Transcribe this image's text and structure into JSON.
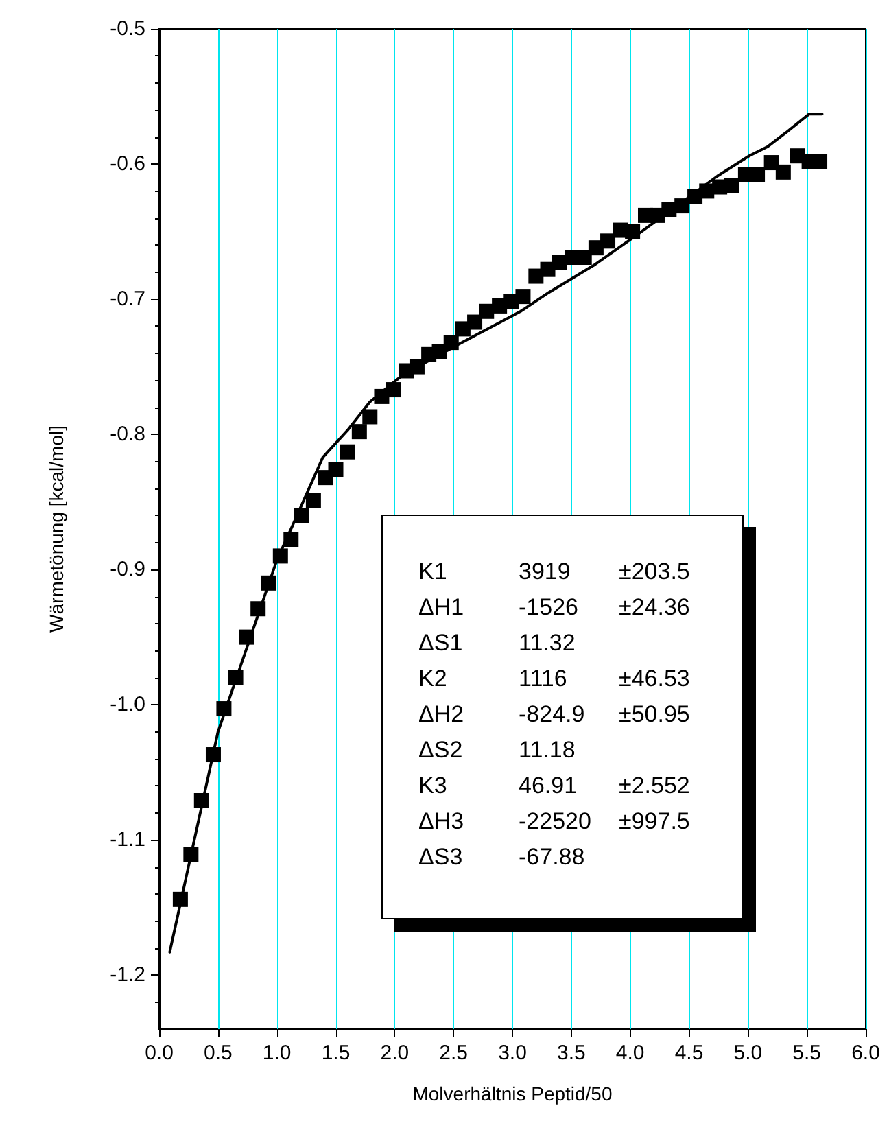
{
  "chart_data": {
    "type": "scatter",
    "xlabel": "Molverhältnis Peptid/50",
    "ylabel": "Wärmetönung [kcal/mol]",
    "xlim": [
      0,
      6
    ],
    "xticks": [
      {
        "value": 0,
        "label": "0.0"
      },
      {
        "value": 0.5,
        "label": "0.5"
      },
      {
        "value": 1,
        "label": "1.0"
      },
      {
        "value": 1.5,
        "label": "1.5"
      },
      {
        "value": 2,
        "label": "2.0"
      },
      {
        "value": 2.5,
        "label": "2.5"
      },
      {
        "value": 3,
        "label": "3.0"
      },
      {
        "value": 3.5,
        "label": "3.5"
      },
      {
        "value": 4,
        "label": "4.0"
      },
      {
        "value": 4.5,
        "label": "4.5"
      },
      {
        "value": 5,
        "label": "5.0"
      },
      {
        "value": 5.5,
        "label": "5.5"
      },
      {
        "value": 6,
        "label": "6.0"
      }
    ],
    "ylim": [
      -1.24,
      -0.5
    ],
    "yticks": [
      -1.2,
      -1.1,
      {
        "value": -1,
        "label": "-1.0"
      },
      -0.9,
      -0.8,
      -0.7,
      -0.6,
      -0.5
    ],
    "grid": "x",
    "series": [
      {
        "marker": "square",
        "color": "#000000",
        "x": [
          0.18,
          0.27,
          0.36,
          0.46,
          0.55,
          0.65,
          0.74,
          0.84,
          0.93,
          1.03,
          1.12,
          1.21,
          1.31,
          1.41,
          1.5,
          1.6,
          1.7,
          1.79,
          1.89,
          1.99,
          2.1,
          2.19,
          2.29,
          2.38,
          2.48,
          2.58,
          2.68,
          2.78,
          2.89,
          2.99,
          3.09,
          3.2,
          3.3,
          3.4,
          3.51,
          3.61,
          3.71,
          3.81,
          3.92,
          4.02,
          4.13,
          4.23,
          4.33,
          4.44,
          4.55,
          4.65,
          4.76,
          4.86,
          4.98,
          5.08,
          5.2,
          5.3,
          5.42,
          5.52,
          5.61
        ],
        "values": [
          -1.144,
          -1.111,
          -1.071,
          -1.037,
          -1.003,
          -0.98,
          -0.95,
          -0.929,
          -0.91,
          -0.89,
          -0.878,
          -0.86,
          -0.849,
          -0.832,
          -0.826,
          -0.813,
          -0.798,
          -0.787,
          -0.772,
          -0.767,
          -0.753,
          -0.75,
          -0.741,
          -0.739,
          -0.732,
          -0.722,
          -0.717,
          -0.709,
          -0.705,
          -0.702,
          -0.698,
          -0.683,
          -0.678,
          -0.673,
          -0.669,
          -0.669,
          -0.662,
          -0.657,
          -0.649,
          -0.65,
          -0.638,
          -0.638,
          -0.634,
          -0.631,
          -0.624,
          -0.62,
          -0.617,
          -0.616,
          -0.608,
          -0.608,
          -0.599,
          -0.606,
          -0.594,
          -0.598,
          -0.598
        ]
      },
      {
        "type": "line",
        "marker": "none",
        "line_style": "solid",
        "color": "#000000",
        "x": [
          0.09,
          0.5,
          1.0,
          1.13,
          1.39,
          1.6,
          1.79,
          2.07,
          2.53,
          2.92,
          3.07,
          3.31,
          3.5,
          3.69,
          4.0,
          4.35,
          4.74,
          5.01,
          5.17,
          5.32,
          5.52,
          5.63
        ],
        "values": [
          -1.183,
          -1.02,
          -0.893,
          -0.868,
          -0.817,
          -0.797,
          -0.776,
          -0.756,
          -0.734,
          -0.716,
          -0.709,
          -0.695,
          -0.685,
          -0.675,
          -0.656,
          -0.634,
          -0.609,
          -0.594,
          -0.587,
          -0.577,
          -0.563,
          -0.563
        ]
      }
    ],
    "annotations": [
      "K1\t3919\t±203.5",
      "ΔH1\t-1526\t±24.36",
      "ΔS1\t11.32",
      "K2\t1116\t±46.53",
      "ΔH2\t-824.9\t±50.95",
      "ΔS2\t11.18",
      "K3\t46.91\t±2.552",
      "ΔH3\t-22520\t±997.5",
      "ΔS3\t-67.88"
    ]
  }
}
